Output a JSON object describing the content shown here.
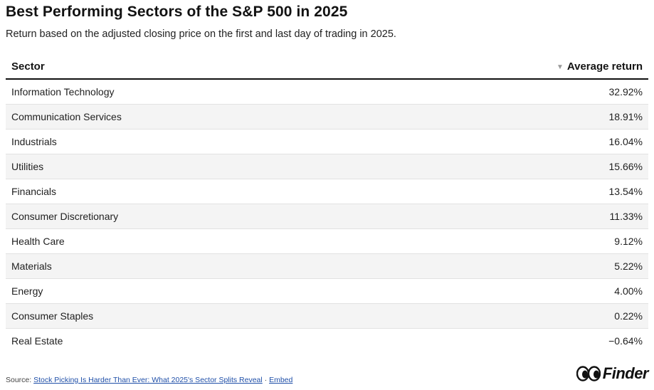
{
  "title": "Best Performing Sectors of the S&P 500 in 2025",
  "subtitle": "Return based on the adjusted closing price on the first and last day of trading in 2025.",
  "chart_data": {
    "type": "table",
    "columns": [
      "Sector",
      "Average return"
    ],
    "sort_column": "Average return",
    "sort_order": "descending",
    "rows": [
      {
        "sector": "Information Technology",
        "value": 32.92,
        "display": "32.92%"
      },
      {
        "sector": "Communication Services",
        "value": 18.91,
        "display": "18.91%"
      },
      {
        "sector": "Industrials",
        "value": 16.04,
        "display": "16.04%"
      },
      {
        "sector": "Utilities",
        "value": 15.66,
        "display": "15.66%"
      },
      {
        "sector": "Financials",
        "value": 13.54,
        "display": "13.54%"
      },
      {
        "sector": "Consumer Discretionary",
        "value": 11.33,
        "display": "11.33%"
      },
      {
        "sector": "Health Care",
        "value": 9.12,
        "display": "9.12%"
      },
      {
        "sector": "Materials",
        "value": 5.22,
        "display": "5.22%"
      },
      {
        "sector": "Energy",
        "value": 4.0,
        "display": "4.00%"
      },
      {
        "sector": "Consumer Staples",
        "value": 0.22,
        "display": "0.22%"
      },
      {
        "sector": "Real Estate",
        "value": -0.64,
        "display": "−0.64%"
      }
    ]
  },
  "footer": {
    "source_label": "Source: ",
    "source_link": "Stock Picking Is Harder Than Ever: What 2025's Sector Splits Reveal",
    "separator": " · ",
    "embed_link": "Embed"
  },
  "logo": {
    "text": "Finder"
  },
  "colors": {
    "row_stripe": "#f4f4f4",
    "link": "#1f4fa8",
    "header_rule": "#111111"
  }
}
